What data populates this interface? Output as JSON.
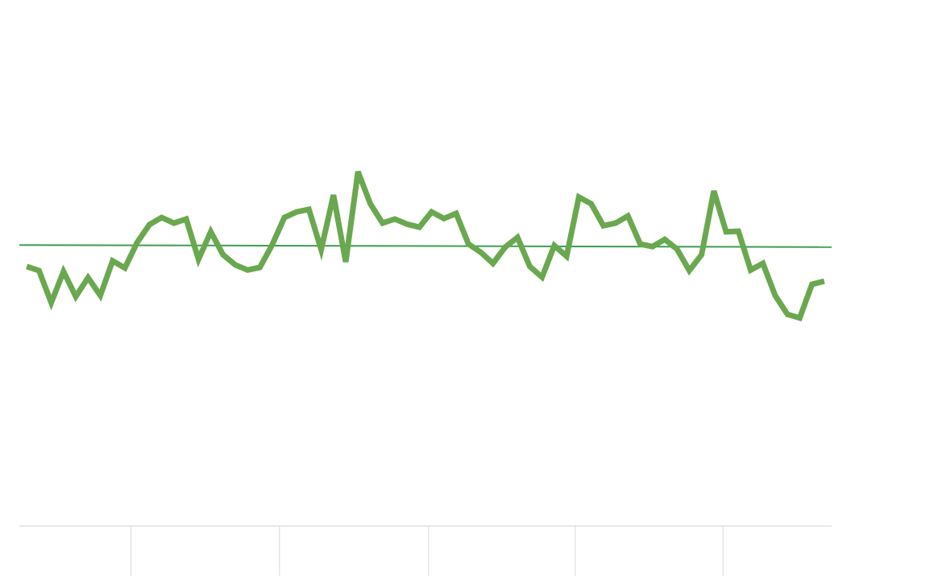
{
  "chart_data": {
    "type": "line",
    "x": [
      0,
      1,
      2,
      3,
      4,
      5,
      6,
      7,
      8,
      9,
      10,
      11,
      12,
      13,
      14,
      15,
      16,
      17,
      18,
      19,
      20,
      21,
      22,
      23,
      24,
      25,
      26,
      27,
      28,
      29,
      30,
      31,
      32,
      33,
      34,
      35,
      36,
      37,
      38,
      39,
      40,
      41,
      42,
      43,
      44,
      45,
      46,
      47,
      48,
      49,
      50,
      51,
      52,
      53,
      54,
      55,
      56,
      57,
      58,
      59,
      60,
      61,
      62,
      63,
      64,
      65
    ],
    "series": [
      {
        "color": "#6aa84f",
        "values": [
          50.9,
          50.1,
          43.8,
          49.9,
          45.0,
          48.7,
          45.2,
          52.0,
          50.6,
          55.6,
          59.1,
          60.5,
          59.4,
          60.2,
          52.3,
          57.7,
          53.2,
          51.2,
          50.2,
          50.7,
          55.1,
          60.5,
          61.6,
          62.1,
          54.2,
          64.9,
          51.8,
          69.5,
          63.2,
          59.4,
          60.2,
          59.2,
          58.6,
          61.6,
          60.3,
          61.3,
          55.3,
          53.7,
          51.5,
          54.7,
          56.6,
          50.9,
          48.8,
          55.0,
          52.9,
          64.5,
          63.2,
          58.9,
          59.4,
          60.8,
          55.3,
          54.8,
          56.2,
          54.3,
          50.1,
          53.2,
          65.7,
          57.7,
          57.8,
          50.2,
          51.5,
          45.2,
          41.5,
          40.8,
          47.4,
          48.0
        ]
      }
    ],
    "trend": {
      "color": "#3d9e50",
      "x": [
        -0.6,
        65.6
      ],
      "values": [
        55.1,
        54.7
      ]
    },
    "xlim": [
      -0.6,
      65.6
    ],
    "xticks": [
      8.5,
      20.6,
      32.75,
      44.7,
      56.75
    ],
    "ylim": [
      0,
      100
    ]
  }
}
